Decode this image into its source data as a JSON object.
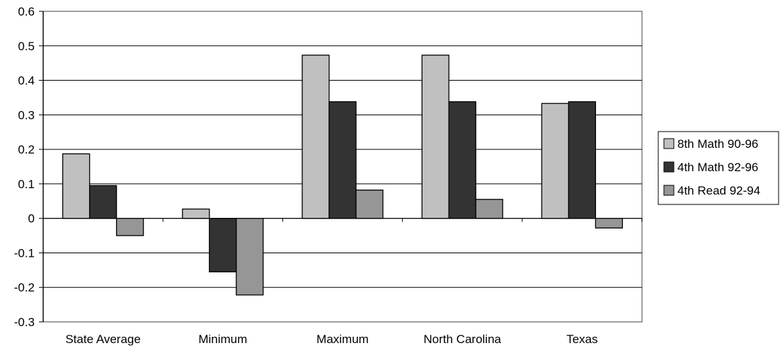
{
  "chart_data": {
    "type": "bar",
    "categories": [
      "State Average",
      "Minimum",
      "Maximum",
      "North Carolina",
      "Texas"
    ],
    "series": [
      {
        "name": "8th Math 90-96",
        "color": "#c0c0c0",
        "values": [
          0.187,
          0.027,
          0.473,
          0.473,
          0.333
        ]
      },
      {
        "name": "4th Math 92-96",
        "color": "#333333",
        "values": [
          0.095,
          -0.155,
          0.338,
          0.338,
          0.338
        ]
      },
      {
        "name": "4th Read 92-94",
        "color": "#969696",
        "values": [
          -0.05,
          -0.222,
          0.082,
          0.055,
          -0.028
        ]
      }
    ],
    "ylim": [
      -0.3,
      0.6
    ],
    "yticks": [
      "-0.3",
      "-0.2",
      "-0.1",
      "0",
      "0.1",
      "0.2",
      "0.3",
      "0.4",
      "0.5",
      "0.6"
    ],
    "grid": true,
    "legend_position": "right",
    "title": "",
    "xlabel": "",
    "ylabel": ""
  }
}
